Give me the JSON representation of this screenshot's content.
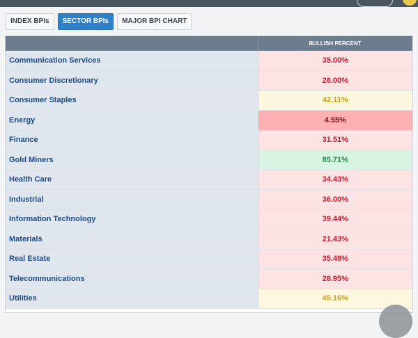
{
  "tabs": [
    {
      "label": "INDEX BPIs",
      "active": false
    },
    {
      "label": "SECTOR BPIs",
      "active": true
    },
    {
      "label": "MAJOR BPI CHART",
      "active": false
    }
  ],
  "table": {
    "headers": [
      "",
      "BULLISH PERCENT"
    ],
    "rows": [
      {
        "name": "Communication Services",
        "value": "35.00%",
        "status": "bear"
      },
      {
        "name": "Consumer Discretionary",
        "value": "28.00%",
        "status": "bear"
      },
      {
        "name": "Consumer Staples",
        "value": "42.11%",
        "status": "neutral"
      },
      {
        "name": "Energy",
        "value": "4.55%",
        "status": "strongbear"
      },
      {
        "name": "Finance",
        "value": "31.51%",
        "status": "bear"
      },
      {
        "name": "Gold Miners",
        "value": "85.71%",
        "status": "bull"
      },
      {
        "name": "Health Care",
        "value": "34.43%",
        "status": "bear"
      },
      {
        "name": "Industrial",
        "value": "36.00%",
        "status": "bear"
      },
      {
        "name": "Information Technology",
        "value": "39.44%",
        "status": "bear"
      },
      {
        "name": "Materials",
        "value": "21.43%",
        "status": "bear"
      },
      {
        "name": "Real Estate",
        "value": "35.48%",
        "status": "bear"
      },
      {
        "name": "Telecommunications",
        "value": "28.95%",
        "status": "bear"
      },
      {
        "name": "Utilities",
        "value": "45.16%",
        "status": "neutral"
      }
    ]
  },
  "colors": {
    "bear_bg": "#fde3e4",
    "bear_text": "#c8192b",
    "strongbear_bg": "#fdb0b2",
    "strongbear_text": "#7a0d16",
    "neutral_bg": "#fdf7df",
    "neutral_text": "#c9a00e",
    "bull_bg": "#d7f3e1",
    "bull_text": "#1f8a45",
    "active_tab": "#2f7fc9"
  }
}
